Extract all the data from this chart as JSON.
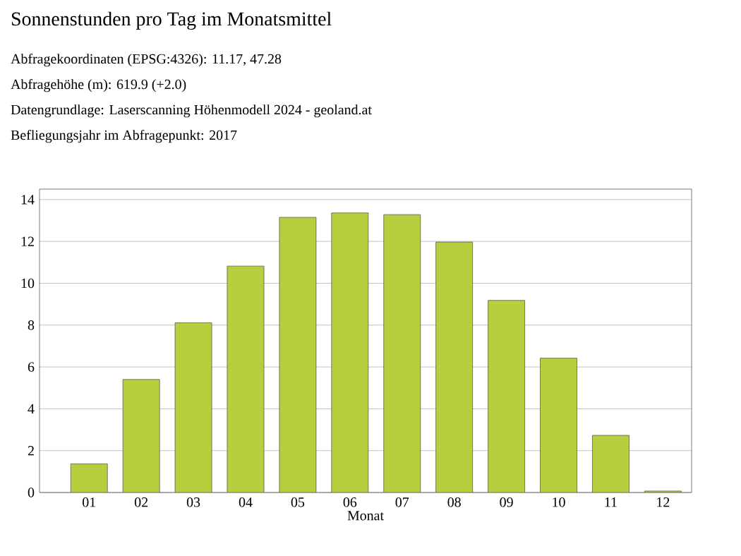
{
  "chart_data": {
    "type": "bar",
    "title": "Sonnenstunden pro Tag im Monatsmittel",
    "annotations": [
      "Abfragekoordinaten (EPSG:4326): 11.17, 47.28",
      "Abfragehöhe (m): 619.9 (+2.0)",
      "Datengrundlage: Laserscanning Höhenmodell 2024 - geoland.at",
      "Befliegungsjahr im Abfragepunkt: 2017"
    ],
    "xlabel": "Monat",
    "categories": [
      "01",
      "02",
      "03",
      "04",
      "05",
      "06",
      "07",
      "08",
      "09",
      "10",
      "11",
      "12"
    ],
    "values": [
      1.37,
      5.4,
      8.11,
      10.82,
      13.15,
      13.36,
      13.28,
      11.97,
      9.18,
      6.42,
      2.73,
      0.07
    ],
    "color": "#b5cf3e",
    "ylim": [
      0,
      14.5
    ],
    "yticks": [
      0,
      2,
      4,
      6,
      8,
      10,
      12,
      14
    ],
    "grid": "y"
  }
}
